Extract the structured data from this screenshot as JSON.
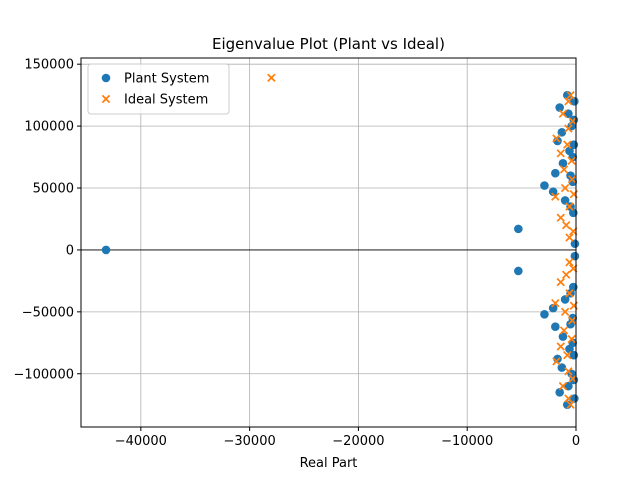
{
  "chart_data": {
    "type": "scatter",
    "title": "Eigenvalue Plot (Plant vs Ideal)",
    "xlabel": "Real Part",
    "ylabel": "",
    "xlim": [
      -45500,
      0
    ],
    "ylim": [
      -143000,
      155000
    ],
    "x_ticks": [
      -40000,
      -30000,
      -20000,
      -10000,
      0
    ],
    "x_tick_labels": [
      "−40000",
      "−30000",
      "−20000",
      "−10000",
      "0"
    ],
    "y_ticks": [
      150000,
      100000,
      50000,
      0,
      -50000,
      -100000
    ],
    "y_tick_labels": [
      "150000",
      "100000",
      "50000",
      "0",
      "−50000",
      "−100000"
    ],
    "grid": true,
    "zero_line": true,
    "legend": {
      "position": "top-left"
    },
    "colors": {
      "plant": "#1f77b4",
      "ideal": "#ff7f0e"
    },
    "series": [
      {
        "name": "Plant System",
        "marker": "circle",
        "points": [
          [
            -43200,
            0
          ],
          [
            -5300,
            17000
          ],
          [
            -5300,
            -17000
          ],
          [
            -2900,
            52000
          ],
          [
            -2900,
            -52000
          ],
          [
            -1900,
            62000
          ],
          [
            -1900,
            -62000
          ],
          [
            -2100,
            47000
          ],
          [
            -2100,
            -47000
          ],
          [
            -1500,
            115000
          ],
          [
            -1500,
            -115000
          ],
          [
            -1700,
            88000
          ],
          [
            -1700,
            -88000
          ],
          [
            -1300,
            95000
          ],
          [
            -1300,
            -95000
          ],
          [
            -1200,
            70000
          ],
          [
            -1200,
            -70000
          ],
          [
            -1000,
            40000
          ],
          [
            -1000,
            -40000
          ],
          [
            -800,
            125000
          ],
          [
            -800,
            -125000
          ],
          [
            -700,
            110000
          ],
          [
            -700,
            -110000
          ],
          [
            -600,
            80000
          ],
          [
            -600,
            -80000
          ],
          [
            -500,
            60000
          ],
          [
            -500,
            -60000
          ],
          [
            -500,
            35000
          ],
          [
            -500,
            -35000
          ],
          [
            -400,
            100000
          ],
          [
            -400,
            -100000
          ],
          [
            -300,
            75000
          ],
          [
            -300,
            -75000
          ],
          [
            -300,
            55000
          ],
          [
            -300,
            -55000
          ],
          [
            -250,
            30000
          ],
          [
            -250,
            -30000
          ],
          [
            -200,
            105000
          ],
          [
            -200,
            -105000
          ],
          [
            -200,
            85000
          ],
          [
            -200,
            -85000
          ],
          [
            -150,
            120000
          ],
          [
            -150,
            -120000
          ],
          [
            -100,
            5000
          ],
          [
            -100,
            -5000
          ]
        ]
      },
      {
        "name": "Ideal System",
        "marker": "x",
        "points": [
          [
            -28000,
            139000
          ],
          [
            -1800,
            90000
          ],
          [
            -1800,
            -90000
          ],
          [
            -1900,
            43000
          ],
          [
            -1900,
            -43000
          ],
          [
            -1400,
            26000
          ],
          [
            -1400,
            -26000
          ],
          [
            -1400,
            78000
          ],
          [
            -1400,
            -78000
          ],
          [
            -1200,
            110000
          ],
          [
            -1200,
            -110000
          ],
          [
            -1100,
            65000
          ],
          [
            -1100,
            -65000
          ],
          [
            -1000,
            50000
          ],
          [
            -1000,
            -50000
          ],
          [
            -900,
            20000
          ],
          [
            -900,
            -20000
          ],
          [
            -800,
            85000
          ],
          [
            -800,
            -85000
          ],
          [
            -700,
            120000
          ],
          [
            -700,
            -120000
          ],
          [
            -700,
            98000
          ],
          [
            -700,
            -98000
          ],
          [
            -600,
            35000
          ],
          [
            -600,
            -35000
          ],
          [
            -600,
            10000
          ],
          [
            -600,
            -10000
          ],
          [
            -500,
            125000
          ],
          [
            -500,
            -125000
          ],
          [
            -400,
            72000
          ],
          [
            -400,
            -72000
          ],
          [
            -350,
            57000
          ],
          [
            -350,
            -57000
          ],
          [
            -300,
            104000
          ],
          [
            -300,
            -104000
          ],
          [
            -250,
            15000
          ],
          [
            -250,
            -15000
          ],
          [
            -200,
            45000
          ],
          [
            -200,
            -45000
          ]
        ]
      }
    ]
  }
}
